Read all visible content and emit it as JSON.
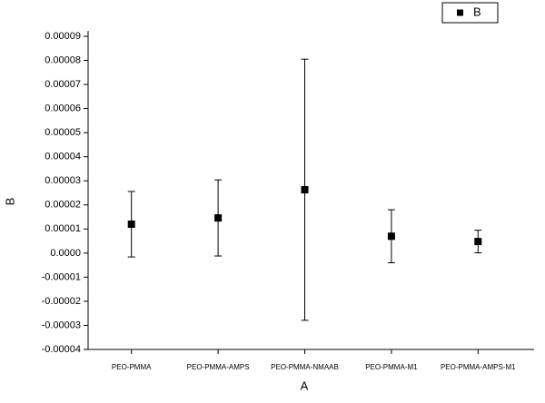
{
  "chart_data": {
    "type": "scatter",
    "x_label": "A",
    "y_label": "B",
    "categories": [
      "PEO-PMMA",
      "PEO-PMMA-AMPS",
      "PEO-PMMA-NMAAB",
      "PEO-PMMA-M1",
      "PEO-PMMA-AMPS-M1"
    ],
    "series": [
      {
        "name": "B",
        "color": "#000000",
        "values": [
          1.2e-05,
          1.46e-05,
          2.63e-05,
          7e-06,
          4.8e-06
        ],
        "errors": [
          1.36e-05,
          1.58e-05,
          5.42e-05,
          1.1e-05,
          4.7e-06
        ]
      }
    ],
    "ylim": [
      -4e-05,
      9e-05
    ],
    "yticks": [
      -4e-05,
      -3e-05,
      -2e-05,
      -1e-05,
      {
        "value": 0,
        "label": "0.0000"
      },
      1e-05,
      2e-05,
      3e-05,
      4e-05,
      5e-05,
      6e-05,
      7e-05,
      8e-05,
      9e-05
    ],
    "legend": "top-right"
  }
}
